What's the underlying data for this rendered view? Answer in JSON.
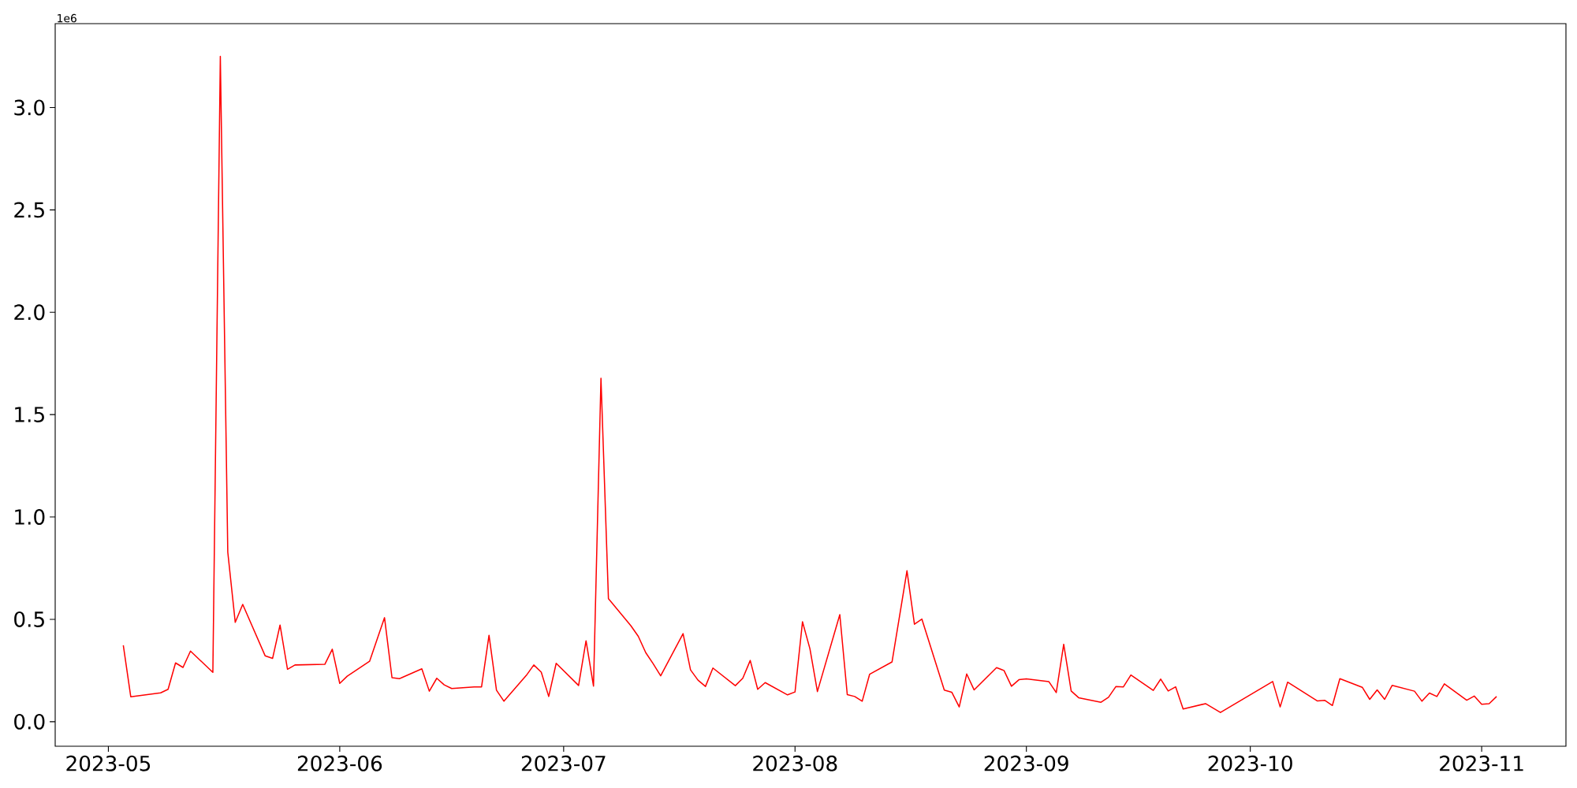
{
  "chart_data": {
    "type": "line",
    "x": [
      "2023-05-03",
      "2023-05-04",
      "2023-05-08",
      "2023-05-09",
      "2023-05-10",
      "2023-05-11",
      "2023-05-12",
      "2023-05-15",
      "2023-05-16",
      "2023-05-17",
      "2023-05-18",
      "2023-05-19",
      "2023-05-22",
      "2023-05-23",
      "2023-05-24",
      "2023-05-25",
      "2023-05-26",
      "2023-05-30",
      "2023-05-31",
      "2023-06-01",
      "2023-06-02",
      "2023-06-05",
      "2023-06-07",
      "2023-06-08",
      "2023-06-09",
      "2023-06-12",
      "2023-06-13",
      "2023-06-14",
      "2023-06-15",
      "2023-06-16",
      "2023-06-19",
      "2023-06-20",
      "2023-06-21",
      "2023-06-22",
      "2023-06-23",
      "2023-06-26",
      "2023-06-27",
      "2023-06-28",
      "2023-06-29",
      "2023-06-30",
      "2023-07-03",
      "2023-07-04",
      "2023-07-05",
      "2023-07-06",
      "2023-07-07",
      "2023-07-10",
      "2023-07-11",
      "2023-07-12",
      "2023-07-13",
      "2023-07-14",
      "2023-07-17",
      "2023-07-18",
      "2023-07-19",
      "2023-07-20",
      "2023-07-21",
      "2023-07-24",
      "2023-07-25",
      "2023-07-26",
      "2023-07-27",
      "2023-07-28",
      "2023-07-31",
      "2023-08-01",
      "2023-08-02",
      "2023-08-03",
      "2023-08-04",
      "2023-08-07",
      "2023-08-08",
      "2023-08-09",
      "2023-08-10",
      "2023-08-11",
      "2023-08-14",
      "2023-08-16",
      "2023-08-17",
      "2023-08-18",
      "2023-08-21",
      "2023-08-22",
      "2023-08-23",
      "2023-08-24",
      "2023-08-25",
      "2023-08-28",
      "2023-08-29",
      "2023-08-30",
      "2023-08-31",
      "2023-09-01",
      "2023-09-04",
      "2023-09-05",
      "2023-09-06",
      "2023-09-07",
      "2023-09-08",
      "2023-09-11",
      "2023-09-12",
      "2023-09-13",
      "2023-09-14",
      "2023-09-15",
      "2023-09-18",
      "2023-09-19",
      "2023-09-20",
      "2023-09-21",
      "2023-09-22",
      "2023-09-25",
      "2023-09-27",
      "2023-10-04",
      "2023-10-05",
      "2023-10-06",
      "2023-10-10",
      "2023-10-11",
      "2023-10-12",
      "2023-10-13",
      "2023-10-16",
      "2023-10-17",
      "2023-10-18",
      "2023-10-19",
      "2023-10-20",
      "2023-10-23",
      "2023-10-24",
      "2023-10-25",
      "2023-10-26",
      "2023-10-27",
      "2023-10-30",
      "2023-10-31",
      "2023-11-01",
      "2023-11-02",
      "2023-11-03"
    ],
    "series": [
      {
        "color": "#ff0000",
        "values": [
          0.373,
          0.122,
          0.141,
          0.158,
          0.287,
          0.265,
          0.345,
          0.241,
          3.25,
          0.828,
          0.485,
          0.573,
          0.322,
          0.309,
          0.472,
          0.256,
          0.277,
          0.28,
          0.354,
          0.187,
          0.222,
          0.295,
          0.508,
          0.215,
          0.21,
          0.258,
          0.149,
          0.212,
          0.18,
          0.162,
          0.17,
          0.17,
          0.422,
          0.154,
          0.1,
          0.226,
          0.277,
          0.242,
          0.123,
          0.285,
          0.177,
          0.395,
          0.174,
          1.678,
          0.601,
          0.469,
          0.417,
          0.337,
          0.283,
          0.224,
          0.43,
          0.253,
          0.203,
          0.172,
          0.262,
          0.176,
          0.212,
          0.299,
          0.158,
          0.191,
          0.131,
          0.145,
          0.488,
          0.356,
          0.147,
          0.523,
          0.132,
          0.123,
          0.1,
          0.232,
          0.292,
          0.737,
          0.476,
          0.501,
          0.154,
          0.144,
          0.072,
          0.233,
          0.155,
          0.264,
          0.25,
          0.173,
          0.205,
          0.209,
          0.196,
          0.142,
          0.378,
          0.15,
          0.117,
          0.095,
          0.119,
          0.172,
          0.17,
          0.228,
          0.153,
          0.208,
          0.15,
          0.17,
          0.062,
          0.088,
          0.045,
          0.196,
          0.072,
          0.193,
          0.101,
          0.104,
          0.079,
          0.21,
          0.168,
          0.109,
          0.155,
          0.109,
          0.177,
          0.149,
          0.1,
          0.14,
          0.123,
          0.185,
          0.105,
          0.125,
          0.085,
          0.088,
          0.123
        ]
      }
    ],
    "xlim": [
      "2023-04-23T21:00",
      "2023-11-12T07:00"
    ],
    "xticks": [
      {
        "value": "2023-05-01",
        "label": "2023-05"
      },
      {
        "value": "2023-06-01",
        "label": "2023-06"
      },
      {
        "value": "2023-07-01",
        "label": "2023-07"
      },
      {
        "value": "2023-08-01",
        "label": "2023-08"
      },
      {
        "value": "2023-09-01",
        "label": "2023-09"
      },
      {
        "value": "2023-10-01",
        "label": "2023-10"
      },
      {
        "value": "2023-11-01",
        "label": "2023-11"
      }
    ],
    "ylim": [
      -0.12,
      3.41
    ],
    "yticks": [
      {
        "value": 0,
        "label": "0.0"
      },
      {
        "value": 0.5,
        "label": "0.5"
      },
      {
        "value": 1,
        "label": "1.0"
      },
      {
        "value": 1.5,
        "label": "1.5"
      },
      {
        "value": 2,
        "label": "2.0"
      },
      {
        "value": 2.5,
        "label": "2.5"
      },
      {
        "value": 3,
        "label": "3.0"
      }
    ],
    "annotations": [
      "1e6"
    ],
    "grid": false,
    "marker": "none",
    "line_style": "solid"
  }
}
